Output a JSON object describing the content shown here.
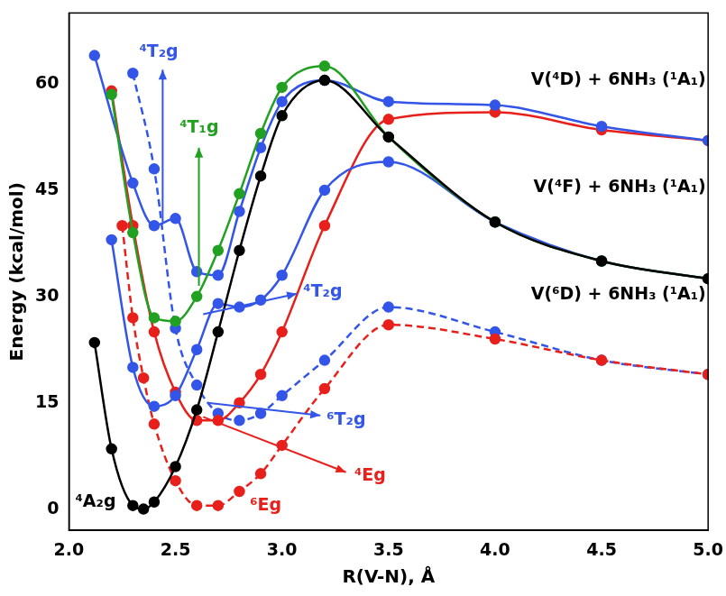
{
  "chart_data": {
    "type": "line",
    "x_label": "R(V-N), Å",
    "y_label": "Energy (kcal/mol)",
    "xlim": [
      2.0,
      5.0
    ],
    "xticks": [
      {
        "value": 2.0,
        "label": "2.0"
      },
      2.5,
      {
        "value": 3.0,
        "label": "3.0"
      },
      3.5,
      {
        "value": 4.0,
        "label": "4.0"
      },
      4.5,
      {
        "value": 5.0,
        "label": "5.0"
      }
    ],
    "ylim": [
      -3,
      70
    ],
    "yticks": [
      0,
      15,
      30,
      45,
      60
    ],
    "grid": false,
    "series": [
      {
        "name": "⁴A₂g",
        "color": "#000000",
        "marker": "circle",
        "line_style": "solid",
        "x": [
          2.12,
          2.2,
          2.3,
          2.35,
          2.4,
          2.5,
          2.6,
          2.7,
          2.8,
          2.9,
          3.0,
          3.2,
          3.5,
          4.0,
          4.5,
          5.0
        ],
        "values": [
          23.5,
          8.5,
          0.5,
          0,
          1,
          6,
          14,
          25,
          36.5,
          47,
          55.5,
          60.5,
          52.5,
          40.5,
          35,
          32.5
        ]
      },
      {
        "name": "⁴T₁g",
        "color": "#22a022",
        "marker": "circle",
        "line_style": "solid",
        "x": [
          2.2,
          2.3,
          2.4,
          2.5,
          2.6,
          2.7,
          2.8,
          2.9,
          3.0,
          3.2,
          3.5,
          4.0,
          4.5,
          5.0
        ],
        "values": [
          58.5,
          39,
          27,
          26.5,
          30,
          36.5,
          44.5,
          53,
          59.5,
          62.5,
          52.5,
          40.5,
          35,
          32.5
        ]
      },
      {
        "name": "⁴T₂g",
        "color": "#3355e8",
        "marker": "circle",
        "line_style": "solid",
        "x": [
          2.12,
          2.3,
          2.4,
          2.5,
          2.6,
          2.7,
          2.8,
          2.9,
          3.0,
          3.2,
          3.5,
          4.0,
          4.5,
          5.0
        ],
        "values": [
          64,
          46,
          40,
          41,
          33.5,
          33,
          42,
          51,
          57.5,
          60.5,
          57.5,
          57,
          54,
          52
        ]
      },
      {
        "name": "⁴T₂g",
        "color": "#3355e8",
        "marker": "circle",
        "line_style": "solid",
        "x": [
          2.2,
          2.3,
          2.4,
          2.5,
          2.6,
          2.7,
          2.8,
          2.9,
          3.0,
          3.2,
          3.5,
          4.0,
          4.5,
          5.0
        ],
        "values": [
          38,
          20,
          14.5,
          16,
          22.5,
          29,
          28.5,
          29.5,
          33,
          45,
          49,
          40.5,
          35,
          32.5
        ]
      },
      {
        "name": "⁴Eg",
        "color": "#e8201c",
        "marker": "circle",
        "line_style": "solid",
        "x": [
          2.2,
          2.3,
          2.4,
          2.5,
          2.6,
          2.7,
          2.8,
          2.9,
          3.0,
          3.2,
          3.5,
          4.0,
          4.5,
          5.0
        ],
        "values": [
          59,
          40,
          25,
          16.5,
          12.5,
          12.5,
          15,
          19,
          25,
          40,
          55,
          56,
          53.5,
          52
        ]
      },
      {
        "name": "⁶Eg",
        "color": "#e8201c",
        "marker": "circle",
        "line_style": "dashed",
        "x": [
          2.25,
          2.3,
          2.35,
          2.4,
          2.5,
          2.6,
          2.7,
          2.8,
          2.9,
          3.0,
          3.2,
          3.5,
          4.0,
          4.5,
          5.0
        ],
        "values": [
          40,
          27,
          18.5,
          12,
          4,
          0.5,
          0.5,
          2.5,
          5,
          9,
          17,
          26,
          24,
          21,
          19
        ]
      },
      {
        "name": "⁶T₂g",
        "color": "#3355e8",
        "marker": "circle",
        "line_style": "dashed",
        "x": [
          2.3,
          2.4,
          2.5,
          2.6,
          2.7,
          2.8,
          2.9,
          3.0,
          3.2,
          3.5,
          4.0,
          4.5,
          5.0
        ],
        "values": [
          61.5,
          48,
          25.5,
          17.5,
          13.5,
          12.5,
          13.5,
          16,
          21,
          28.5,
          25,
          21,
          19
        ]
      }
    ],
    "annotations": [
      {
        "text": "⁴A₂g",
        "x": 2.03,
        "y": 1,
        "color": "#000000",
        "anchor": "left"
      },
      {
        "text": "⁶Eg",
        "x": 2.85,
        "y": 0.5,
        "color": "#e8201c",
        "anchor": "left"
      },
      {
        "text": "⁴Eg",
        "x": 3.34,
        "y": 4.7,
        "color": "#e8201c",
        "anchor": "left",
        "arrow": [
          2.63,
          13,
          3.3,
          5.2
        ]
      },
      {
        "text": "⁶T₂g",
        "x": 3.21,
        "y": 12.5,
        "color": "#3355e8",
        "anchor": "left",
        "arrow": [
          2.65,
          15,
          3.18,
          13.2
        ]
      },
      {
        "text": "⁴T₂g",
        "x": 3.1,
        "y": 30.6,
        "color": "#3355e8",
        "anchor": "left",
        "arrow": [
          2.63,
          27.5,
          3.07,
          30.4
        ]
      },
      {
        "text": "⁴T₁g",
        "x": 2.52,
        "y": 53.7,
        "color": "#22a022",
        "anchor": "left",
        "arrow": [
          2.61,
          31.5,
          2.61,
          51
        ]
      },
      {
        "text": "⁴T₂g",
        "x": 2.33,
        "y": 64.4,
        "color": "#3355e8",
        "anchor": "left",
        "arrow": [
          2.44,
          40.5,
          2.44,
          62
        ]
      },
      {
        "text": "V(⁴D) + 6NH₃ (¹A₁)",
        "x": 4.99,
        "y": 60.5,
        "color": "#000000",
        "anchor": "right"
      },
      {
        "text": "V(⁴F) + 6NH₃ (¹A₁)",
        "x": 4.99,
        "y": 45.4,
        "color": "#000000",
        "anchor": "right"
      },
      {
        "text": "V(⁶D) + 6NH₃ (¹A₁)",
        "x": 4.99,
        "y": 30.2,
        "color": "#000000",
        "anchor": "right"
      }
    ]
  }
}
